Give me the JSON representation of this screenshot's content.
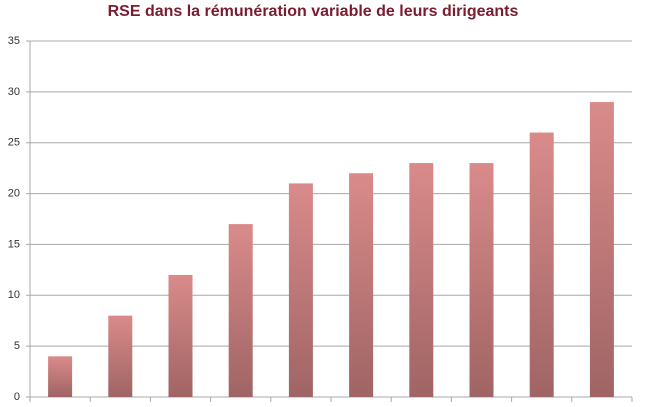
{
  "chart_data": {
    "type": "bar",
    "title": "RSE dans la rémunération variable de leurs dirigeants",
    "categories": [
      null,
      null,
      null,
      null,
      null,
      null,
      null,
      null,
      null,
      null
    ],
    "values": [
      4,
      8,
      12,
      17,
      21,
      22,
      23,
      23,
      26,
      29
    ],
    "color": "#d88a8a",
    "ylim": [
      0,
      35
    ],
    "yticks": [
      0,
      5,
      10,
      15,
      20,
      25,
      30,
      35
    ],
    "grid": true
  }
}
